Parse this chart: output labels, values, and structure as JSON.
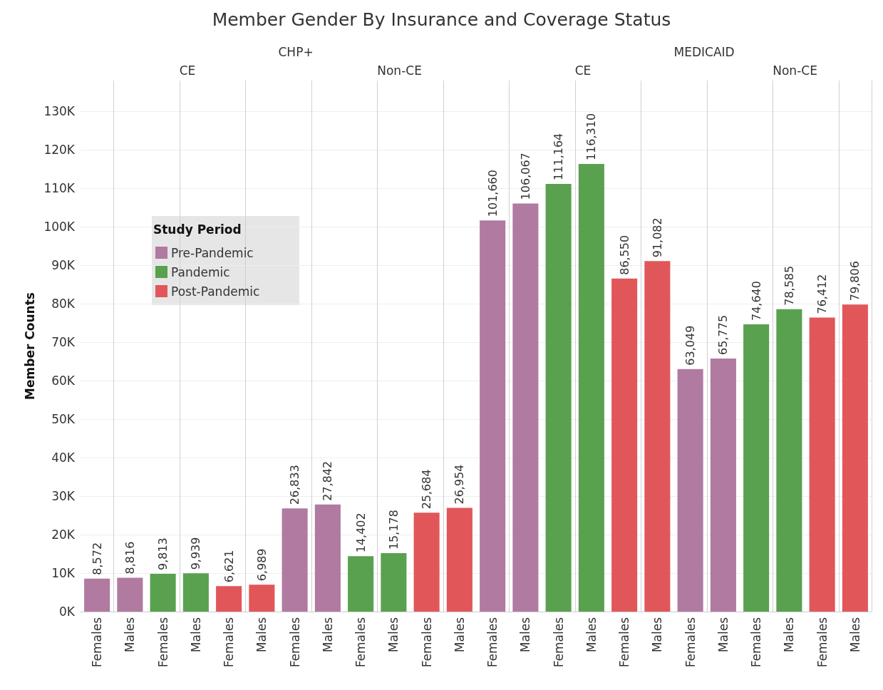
{
  "chart_data": {
    "type": "bar",
    "title": "Member Gender By Insurance and Coverage Status",
    "ylabel": "Member Counts",
    "legend_title": "Study Period",
    "legend": "top left",
    "grid": true,
    "annotations": [
      "CHP+",
      "MEDICAID",
      "CE",
      "Non-CE",
      "CE",
      "Non-CE"
    ],
    "categories": [
      "Females",
      "Males",
      "Females",
      "Males",
      "Females",
      "Males",
      "Females",
      "Males",
      "Females",
      "Males",
      "Females",
      "Males",
      "Females",
      "Males",
      "Females",
      "Males",
      "Females",
      "Males",
      "Females",
      "Males",
      "Females",
      "Males",
      "Females",
      "Males"
    ],
    "ylim": [
      0,
      138000
    ],
    "yticks": [
      {
        "value": 0,
        "label": "0K"
      },
      {
        "value": 10000,
        "label": "10K"
      },
      {
        "value": 20000,
        "label": "20K"
      },
      {
        "value": 30000,
        "label": "30K"
      },
      {
        "value": 40000,
        "label": "40K"
      },
      {
        "value": 50000,
        "label": "50K"
      },
      {
        "value": 60000,
        "label": "60K"
      },
      {
        "value": 70000,
        "label": "70K"
      },
      {
        "value": 80000,
        "label": "80K"
      },
      {
        "value": 90000,
        "label": "90K"
      },
      {
        "value": 100000,
        "label": "100K"
      },
      {
        "value": 110000,
        "label": "110K"
      },
      {
        "value": 120000,
        "label": "120K"
      },
      {
        "value": 130000,
        "label": "130K"
      }
    ],
    "series": [
      {
        "name": "Pre-Pandemic",
        "color": "#b07aa1",
        "values": [
          8572,
          8816,
          null,
          null,
          null,
          null,
          26833,
          27842,
          null,
          null,
          null,
          null,
          101660,
          106067,
          null,
          null,
          null,
          null,
          63049,
          65775,
          null,
          null,
          null,
          null
        ],
        "value_labels": [
          "8,572",
          "8,816",
          null,
          null,
          null,
          null,
          "26,833",
          "27,842",
          null,
          null,
          null,
          null,
          "101,660",
          "106,067",
          null,
          null,
          null,
          null,
          "63,049",
          "65,775",
          null,
          null,
          null,
          null
        ]
      },
      {
        "name": "Pandemic",
        "color": "#59a14f",
        "values": [
          null,
          null,
          9813,
          9939,
          null,
          null,
          null,
          null,
          14402,
          15178,
          null,
          null,
          null,
          null,
          111164,
          116310,
          null,
          null,
          null,
          null,
          74640,
          78585,
          null,
          null
        ],
        "value_labels": [
          null,
          null,
          "9,813",
          "9,939",
          null,
          null,
          null,
          null,
          "14,402",
          "15,178",
          null,
          null,
          null,
          null,
          "111,164",
          "116,310",
          null,
          null,
          null,
          null,
          "74,640",
          "78,585",
          null,
          null
        ]
      },
      {
        "name": "Post-Pandemic",
        "color": "#e15759",
        "values": [
          null,
          null,
          null,
          null,
          6621,
          6989,
          null,
          null,
          null,
          null,
          25684,
          26954,
          null,
          null,
          null,
          null,
          86550,
          91082,
          null,
          null,
          null,
          null,
          76412,
          79806
        ],
        "value_labels": [
          null,
          null,
          null,
          null,
          "6,621",
          "6,989",
          null,
          null,
          null,
          null,
          "25,684",
          "26,954",
          null,
          null,
          null,
          null,
          "86,550",
          "91,082",
          null,
          null,
          null,
          null,
          "76,412",
          "79,806"
        ]
      }
    ]
  }
}
